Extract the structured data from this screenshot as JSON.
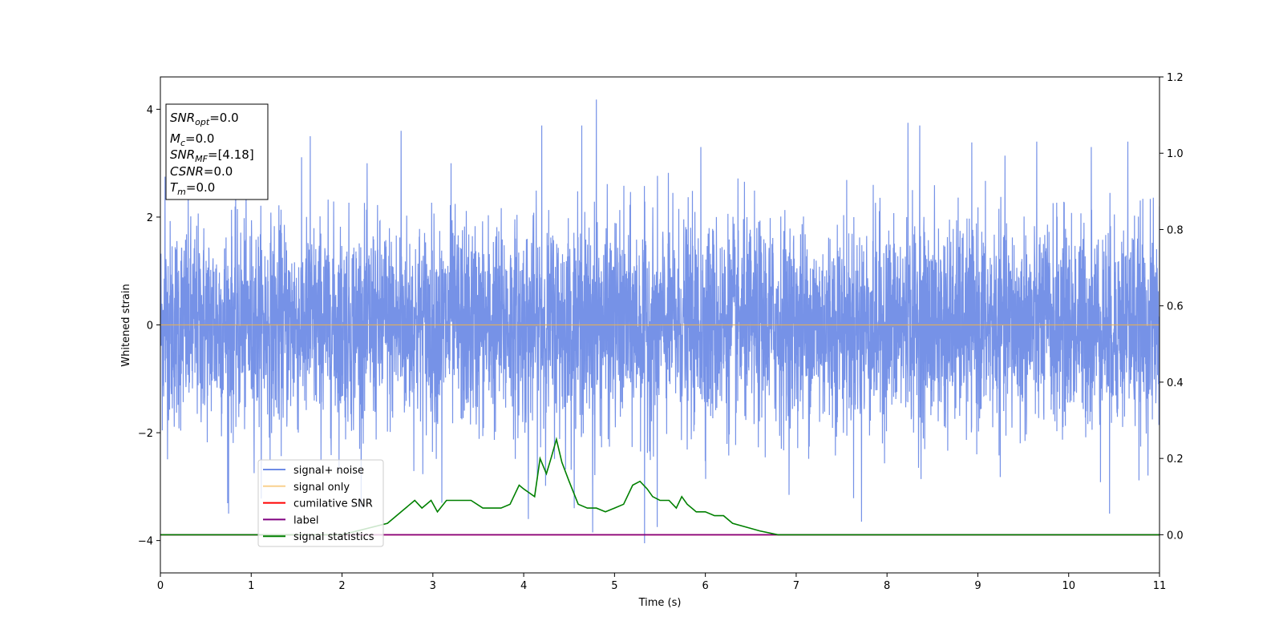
{
  "chart_data": {
    "type": "line",
    "xlabel": "Time (s)",
    "ylabel": "Whitened strain",
    "xlim": [
      0,
      11
    ],
    "ylim": [
      -4.6,
      4.6
    ],
    "y2lim": [
      -0.1,
      1.2
    ],
    "x_ticks": [
      0,
      1,
      2,
      3,
      4,
      5,
      6,
      7,
      8,
      9,
      10,
      11
    ],
    "y_ticks": [
      -4,
      -2,
      0,
      2,
      4
    ],
    "y2_ticks": [
      0.0,
      0.2,
      0.4,
      0.6,
      0.8,
      1.0,
      1.2
    ],
    "tick_labels": {
      "x": [
        "0",
        "1",
        "2",
        "3",
        "4",
        "5",
        "6",
        "7",
        "8",
        "9",
        "10",
        "11"
      ],
      "y": [
        "−4",
        "−2",
        "0",
        "2",
        "4"
      ],
      "y2": [
        "0.0",
        "0.2",
        "0.4",
        "0.6",
        "0.8",
        "1.0",
        "1.2"
      ]
    },
    "grid": false,
    "legend_position": "lower-left",
    "colors": {
      "signal_noise": "#6f8ce6",
      "signal_only": "#f5b342",
      "cumulative_snr": "#ff0000",
      "label": "#800080",
      "signal_statistics": "#008000"
    },
    "series": [
      {
        "name": "signal+ noise",
        "axis": "left",
        "description_values": "dense whitened noise, amplitude mostly within [-2.5, 2.5] with spikes up to 4.18 near t=4.8 and down to -4.05 near t=5.3",
        "peaks": [
          {
            "x": 0.05,
            "y": 2.75
          },
          {
            "x": 0.75,
            "y": -3.5
          },
          {
            "x": 1.65,
            "y": 3.5
          },
          {
            "x": 2.65,
            "y": 3.6
          },
          {
            "x": 3.1,
            "y": -3.3
          },
          {
            "x": 3.2,
            "y": 3.0
          },
          {
            "x": 4.05,
            "y": -3.6
          },
          {
            "x": 4.2,
            "y": 3.7
          },
          {
            "x": 4.64,
            "y": 3.7
          },
          {
            "x": 4.76,
            "y": -3.85
          },
          {
            "x": 4.8,
            "y": 4.18
          },
          {
            "x": 5.33,
            "y": -4.05
          },
          {
            "x": 5.47,
            "y": -3.75
          },
          {
            "x": 5.95,
            "y": 3.3
          },
          {
            "x": 7.72,
            "y": -3.65
          },
          {
            "x": 8.23,
            "y": 3.75
          },
          {
            "x": 8.36,
            "y": 3.7
          },
          {
            "x": 10.25,
            "y": 3.3
          },
          {
            "x": 10.45,
            "y": -3.5
          },
          {
            "x": 10.65,
            "y": 3.4
          },
          {
            "x": 11.0,
            "y": 2.2
          }
        ]
      },
      {
        "name": "signal only",
        "axis": "left",
        "x": [
          0,
          11
        ],
        "y": [
          0,
          0
        ]
      },
      {
        "name": "cumilative SNR",
        "axis": "right",
        "x": [
          0,
          11
        ],
        "y": [
          0,
          0
        ]
      },
      {
        "name": "label",
        "axis": "right",
        "x": [
          0,
          11
        ],
        "y": [
          0,
          0
        ]
      },
      {
        "name": "signal statistics",
        "axis": "right",
        "x": [
          0,
          1,
          2,
          2.5,
          2.6,
          2.7,
          2.8,
          2.88,
          2.98,
          3.05,
          3.15,
          3.28,
          3.42,
          3.55,
          3.65,
          3.75,
          3.85,
          3.95,
          4.0,
          4.06,
          4.12,
          4.18,
          4.25,
          4.3,
          4.36,
          4.42,
          4.5,
          4.6,
          4.7,
          4.8,
          4.9,
          5.0,
          5.1,
          5.2,
          5.28,
          5.36,
          5.42,
          5.5,
          5.6,
          5.68,
          5.74,
          5.8,
          5.9,
          6.0,
          6.1,
          6.2,
          6.3,
          6.45,
          6.6,
          6.8,
          7.0,
          7.5,
          8.0,
          8.5,
          9.0,
          10.0,
          11.0
        ],
        "y": [
          0.0,
          0.0,
          0.0,
          0.03,
          0.05,
          0.07,
          0.09,
          0.07,
          0.09,
          0.06,
          0.09,
          0.09,
          0.09,
          0.07,
          0.07,
          0.07,
          0.08,
          0.13,
          0.12,
          0.11,
          0.1,
          0.2,
          0.16,
          0.2,
          0.25,
          0.19,
          0.14,
          0.08,
          0.07,
          0.07,
          0.06,
          0.07,
          0.08,
          0.13,
          0.14,
          0.12,
          0.1,
          0.09,
          0.09,
          0.07,
          0.1,
          0.08,
          0.06,
          0.06,
          0.05,
          0.05,
          0.03,
          0.02,
          0.01,
          0.0,
          0.0,
          0.0,
          0.0,
          0.0,
          0.0,
          0.0,
          0.0
        ]
      }
    ],
    "annotation": [
      {
        "base": "SNR",
        "sub": "opt",
        "value": "=0.0"
      },
      {
        "base": "M",
        "sub": "c",
        "value": "=0.0"
      },
      {
        "base": "SNR",
        "sub": "MF",
        "value": "=[4.18]"
      },
      {
        "base": "CSNR",
        "sub": "",
        "value": "=0.0"
      },
      {
        "base": "T",
        "sub": "m",
        "value": "=0.0"
      }
    ]
  }
}
